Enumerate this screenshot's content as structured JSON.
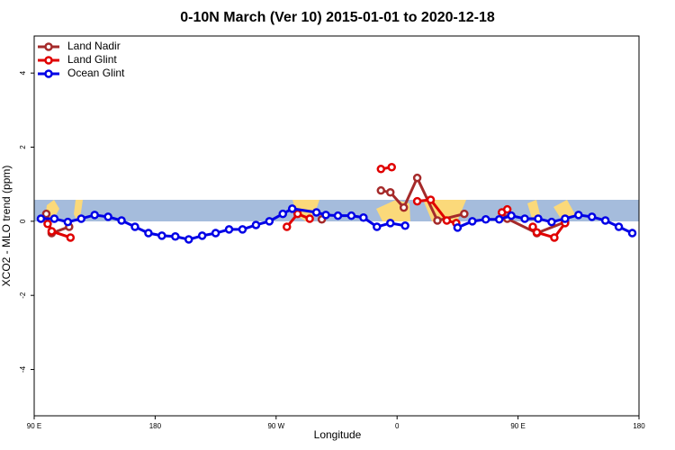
{
  "chart_data": {
    "type": "line",
    "title": "0-10N March (Ver 10)   2015-01-01 to 2020-12-18",
    "x_label": "Longitude",
    "y_label": "XCO2 - MLO trend (ppm)",
    "xlim": [
      -270,
      180
    ],
    "ylim": [
      -5.25,
      5
    ],
    "xticks": [
      {
        "value": -270,
        "label": "90 E"
      },
      {
        "value": -180,
        "label": "180"
      },
      {
        "value": -90,
        "label": "90 W"
      },
      0,
      {
        "value": 90,
        "label": "90 E"
      },
      180
    ],
    "yticks": [
      -4,
      -2,
      0,
      2,
      4
    ],
    "legend": "top-left",
    "series": [
      {
        "name": "Land Nadir",
        "color": "#a52a2a",
        "x": [
          -261,
          -257,
          -244,
          -150,
          -56,
          -30,
          -12,
          -5,
          5,
          15,
          30,
          50,
          66,
          82,
          104,
          125
        ],
        "values": [
          0.2,
          -0.32,
          -0.15,
          null,
          0.05,
          null,
          0.83,
          0.78,
          0.37,
          1.17,
          0.02,
          0.2,
          null,
          0.07,
          -0.32,
          -0.02
        ]
      },
      {
        "name": "Land Glint",
        "color": "#e00000",
        "x": [
          -260,
          -257,
          -243,
          -160,
          -82,
          -74,
          -65,
          -40,
          -12,
          -4,
          5,
          15,
          25,
          37,
          44,
          60,
          78,
          82,
          90,
          101,
          104,
          117,
          125
        ],
        "values": [
          -0.07,
          -0.27,
          -0.44,
          null,
          -0.15,
          0.2,
          0.07,
          null,
          1.41,
          1.46,
          null,
          0.54,
          0.58,
          0.02,
          -0.05,
          null,
          0.24,
          0.32,
          null,
          -0.15,
          -0.3,
          -0.44,
          -0.05
        ]
      },
      {
        "name": "Ocean Glint",
        "color": "#0000e6",
        "x": [
          -265,
          -255,
          -245,
          -235,
          -225,
          -215,
          -205,
          -195,
          -185,
          -175,
          -165,
          -155,
          -145,
          -135,
          -125,
          -115,
          -105,
          -95,
          -85,
          -78,
          -60,
          -53,
          -44,
          -34,
          -25,
          -15,
          -5,
          6,
          25,
          45,
          56,
          66,
          76,
          85,
          95,
          105,
          115,
          125,
          135,
          145,
          155,
          165,
          175
        ],
        "values": [
          0.07,
          0.07,
          -0.02,
          0.07,
          0.17,
          0.12,
          0.02,
          -0.15,
          -0.32,
          -0.39,
          -0.41,
          -0.49,
          -0.39,
          -0.32,
          -0.22,
          -0.22,
          -0.1,
          0,
          0.2,
          0.34,
          0.24,
          0.17,
          0.15,
          0.15,
          0.1,
          -0.15,
          -0.05,
          -0.12,
          null,
          -0.17,
          0,
          0.05,
          0.05,
          0.15,
          0.07,
          0.07,
          -0.02,
          0.07,
          0.17,
          0.12,
          0.02,
          -0.15,
          -0.32
        ]
      }
    ]
  }
}
